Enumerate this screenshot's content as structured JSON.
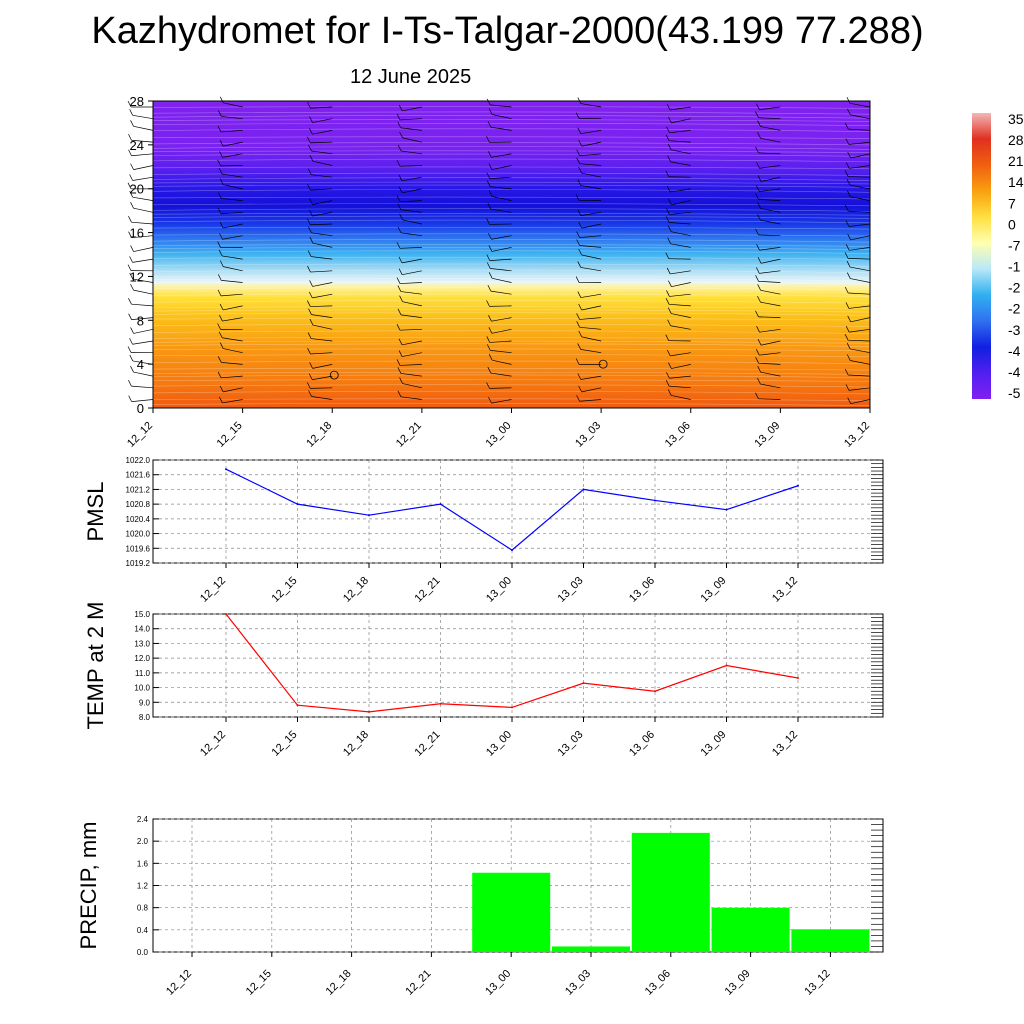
{
  "title": "Kazhydromet for I-Ts-Talgar-2000(43.199 77.288)",
  "subtitle": "12 June 2025",
  "chart_data": [
    {
      "type": "heatmap",
      "name": "cross-section",
      "y_ticks": [
        "0",
        "4",
        "8",
        "12",
        "16",
        "20",
        "24",
        "28"
      ],
      "ylim": [
        0,
        28
      ],
      "x_ticks": [
        "12_12",
        "12_15",
        "12_18",
        "12_21",
        "13_00",
        "13_03",
        "13_06",
        "13_09",
        "13_12"
      ],
      "colorbar_labels": [
        "35",
        "28",
        "21",
        "14",
        "7",
        "0",
        "-7",
        "-1",
        "-2",
        "-2",
        "-3",
        "-4",
        "-4",
        "-5"
      ],
      "colorbar_colors": [
        "#f2b8b8",
        "#e03020",
        "#f06010",
        "#f8a010",
        "#ffe040",
        "#ffffb0",
        "#b8e8f8",
        "#30b0f0",
        "#3070f0",
        "#1020e0",
        "#5020f0",
        "#8020f0"
      ]
    },
    {
      "type": "line",
      "ylabel": "PMSL",
      "categories": [
        "12_12",
        "12_15",
        "12_18",
        "12_21",
        "13_00",
        "13_03",
        "13_06",
        "13_09",
        "13_12"
      ],
      "values": [
        1021.75,
        1020.8,
        1020.5,
        1020.8,
        1019.55,
        1021.2,
        1020.9,
        1020.65,
        1021.3
      ],
      "ylim": [
        1019.2,
        1022.0
      ],
      "y_ticks": [
        "1022.0",
        "1021.6",
        "1021.2",
        "1020.8",
        "1020.4",
        "1020.0",
        "1019.6",
        "1019.2"
      ],
      "color": "#0000ff"
    },
    {
      "type": "line",
      "ylabel": "TEMP at 2 M",
      "categories": [
        "12_12",
        "12_15",
        "12_18",
        "12_21",
        "13_00",
        "13_03",
        "13_06",
        "13_09",
        "13_12"
      ],
      "values": [
        15.0,
        8.8,
        8.35,
        8.9,
        8.65,
        10.3,
        9.75,
        11.5,
        10.65
      ],
      "ylim": [
        8.0,
        15.0
      ],
      "y_ticks": [
        "15.0",
        "14.0",
        "13.0",
        "12.0",
        "11.0",
        "10.0",
        "9.0",
        "8.0"
      ],
      "color": "#ff0000"
    },
    {
      "type": "bar",
      "ylabel": "PRECIP, mm",
      "categories": [
        "12_12",
        "12_15",
        "12_18",
        "12_21",
        "13_00",
        "13_03",
        "13_06",
        "13_09",
        "13_12"
      ],
      "values": [
        0,
        0,
        0,
        0,
        1.43,
        0.1,
        2.15,
        0.8,
        0.41
      ],
      "ylim": [
        0,
        2.4
      ],
      "y_ticks": [
        "2.4",
        "2.0",
        "1.6",
        "1.2",
        "0.8",
        "0.4",
        "0.0"
      ],
      "color": "#00ff00"
    }
  ]
}
